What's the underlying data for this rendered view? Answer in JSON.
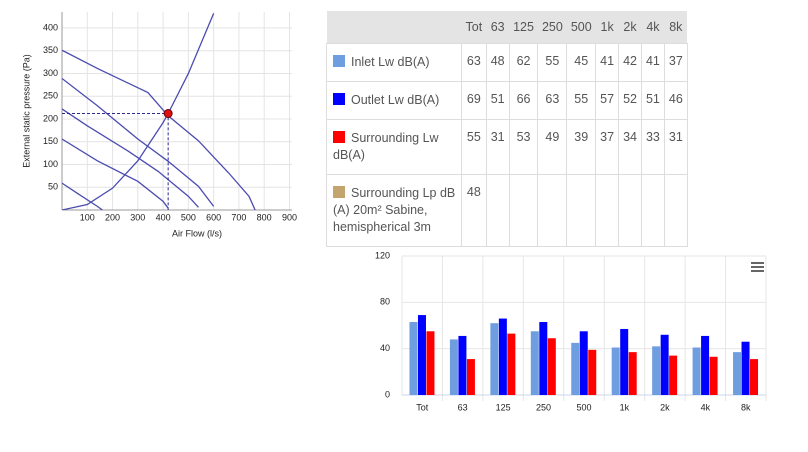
{
  "chart_data": [
    {
      "type": "line",
      "ylabel": "External static pressure (Pa)",
      "xlabel": "Air Flow (l/s)",
      "xlim": [
        0,
        910
      ],
      "ylim": [
        0,
        435
      ],
      "xticks": [
        100,
        200,
        300,
        400,
        500,
        600,
        700,
        800,
        900
      ],
      "yticks": [
        50,
        100,
        150,
        200,
        250,
        300,
        350,
        400
      ],
      "grid": true,
      "series": [
        {
          "color": "#4b4bb0",
          "x": [
            0,
            140,
            340,
            420,
            540,
            660,
            740,
            764
          ],
          "values": [
            351,
            311,
            258,
            207,
            152,
            81,
            30,
            0
          ]
        },
        {
          "color": "#4b4bb0",
          "x": [
            0,
            140,
            300,
            420,
            540,
            600
          ],
          "values": [
            289,
            229,
            156,
            107,
            52,
            8
          ]
        },
        {
          "color": "#4b4bb0",
          "x": [
            0,
            100,
            260,
            380,
            500,
            540
          ],
          "values": [
            222,
            185,
            130,
            85,
            30,
            6
          ]
        },
        {
          "color": "#4b4bb0",
          "x": [
            0,
            140,
            300,
            400,
            420
          ],
          "values": [
            156,
            108,
            63,
            19,
            4
          ]
        },
        {
          "color": "#4b4bb0",
          "x": [
            0,
            60,
            140,
            160
          ],
          "values": [
            59,
            37,
            8,
            0
          ]
        },
        {
          "color": "#4b4bb0",
          "x": [
            0,
            100,
            200,
            300,
            400,
            420,
            500,
            600
          ],
          "values": [
            0,
            12,
            48,
            108,
            192,
            212,
            300,
            432
          ]
        }
      ],
      "operating_point": {
        "x": 420,
        "y": 212,
        "color": "#e01010"
      }
    },
    {
      "type": "bar",
      "categories": [
        "Tot",
        "63",
        "125",
        "250",
        "500",
        "1k",
        "2k",
        "4k",
        "8k"
      ],
      "ylim": [
        0,
        120
      ],
      "yticks": [
        0,
        40,
        80,
        120
      ],
      "grid": true,
      "series": [
        {
          "color": "#6f9ee0",
          "values": [
            63,
            48,
            62,
            55,
            45,
            41,
            42,
            41,
            37
          ]
        },
        {
          "color": "#0000ff",
          "values": [
            69,
            51,
            66,
            63,
            55,
            57,
            52,
            51,
            46
          ]
        },
        {
          "color": "#ff0000",
          "values": [
            55,
            31,
            53,
            49,
            39,
            37,
            34,
            33,
            31
          ]
        }
      ]
    }
  ],
  "table": {
    "header": [
      "Tot",
      "63",
      "125",
      "250",
      "500",
      "1k",
      "2k",
      "4k",
      "8k"
    ],
    "rows": [
      {
        "label": "Inlet Lw dB(A)",
        "color": "#6f9ee0",
        "values": [
          63,
          48,
          62,
          55,
          45,
          41,
          42,
          41,
          37
        ]
      },
      {
        "label": "Outlet Lw dB(A)",
        "color": "#0000ff",
        "values": [
          69,
          51,
          66,
          63,
          55,
          57,
          52,
          51,
          46
        ]
      },
      {
        "label": "Surrounding Lw dB(A)",
        "color": "#ff0000",
        "values": [
          55,
          31,
          53,
          49,
          39,
          37,
          34,
          33,
          31
        ]
      },
      {
        "label": "Surrounding Lp dB (A) 20m² Sabine, hemispherical 3m",
        "color": "#c3a46e",
        "values": [
          48
        ]
      }
    ]
  }
}
